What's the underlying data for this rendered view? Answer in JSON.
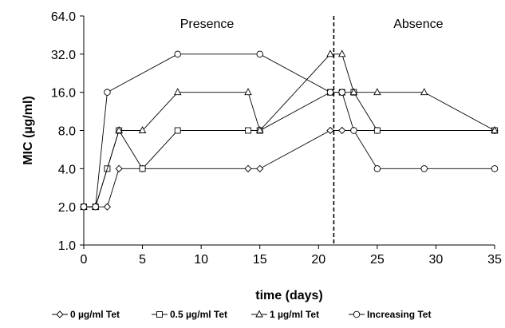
{
  "chart_data": {
    "type": "line",
    "xlabel": "time (days)",
    "ylabel": "MIC (µg/ml)",
    "xlim": [
      0,
      35
    ],
    "x_ticks": [
      0,
      5,
      10,
      15,
      20,
      25,
      30,
      35
    ],
    "x_tick_labels": [
      "0",
      "5",
      "10",
      "15",
      "20",
      "25",
      "30",
      "35"
    ],
    "y_scale": "log2",
    "ylim": [
      1,
      64
    ],
    "y_ticks": [
      1,
      2,
      4,
      8,
      16,
      32,
      64
    ],
    "y_tick_labels": [
      "1.0",
      "2.0",
      "4.0",
      "8.0",
      "16.0",
      "32.0",
      "64.0"
    ],
    "grid": false,
    "legend_position": "bottom",
    "annotations": [
      {
        "text": "Presence",
        "x": 10.5,
        "y": 56
      },
      {
        "text": "Absence",
        "x": 28.5,
        "y": 56
      }
    ],
    "vertical_line": {
      "x": 21.3,
      "style": "dashed"
    },
    "series": [
      {
        "name": "0 µg/ml Tet",
        "marker": "diamond",
        "x": [
          0,
          1,
          2,
          3,
          5,
          14,
          15,
          21,
          22,
          23,
          25,
          35
        ],
        "y": [
          2,
          2,
          2,
          4,
          4,
          4,
          4,
          8,
          8,
          8,
          8,
          8
        ]
      },
      {
        "name": "0.5 µg/ml Tet",
        "marker": "square",
        "x": [
          0,
          1,
          2,
          3,
          5,
          8,
          14,
          15,
          21,
          22,
          23,
          25,
          35
        ],
        "y": [
          2,
          2,
          4,
          8,
          4,
          8,
          8,
          8,
          16,
          16,
          16,
          8,
          8
        ]
      },
      {
        "name": "1 µg/ml Tet",
        "marker": "triangle",
        "x": [
          0,
          1,
          3,
          5,
          8,
          14,
          15,
          21,
          22,
          23,
          25,
          29,
          35
        ],
        "y": [
          2,
          2,
          8,
          8,
          16,
          16,
          8,
          32,
          32,
          16,
          16,
          16,
          8
        ]
      },
      {
        "name": "Increasing Tet",
        "marker": "circle",
        "x": [
          0,
          1,
          2,
          8,
          15,
          21,
          22,
          23,
          25,
          29,
          35
        ],
        "y": [
          2,
          2,
          16,
          32,
          32,
          16,
          16,
          8,
          4,
          4,
          4
        ]
      }
    ]
  }
}
